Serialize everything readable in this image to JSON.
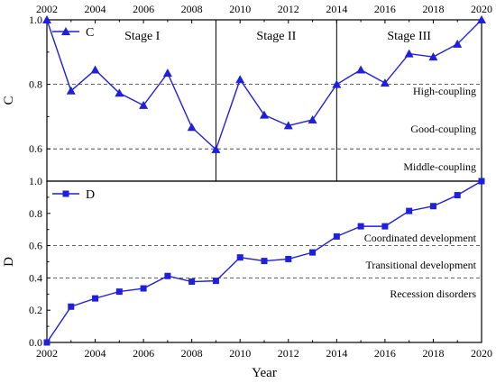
{
  "chart_data": [
    {
      "type": "line",
      "ylabel": "C",
      "xlim": [
        2002,
        2020
      ],
      "ylim": [
        0.5,
        1.0
      ],
      "yticks": [
        "0.6",
        "0.8",
        "1.0"
      ],
      "x_top_ticks": [
        "2002",
        "2004",
        "2006",
        "2008",
        "2010",
        "2012",
        "2014",
        "2016",
        "2018",
        "2020"
      ],
      "x": [
        2002,
        2003,
        2004,
        2005,
        2006,
        2007,
        2008,
        2009,
        2010,
        2011,
        2012,
        2013,
        2014,
        2015,
        2016,
        2017,
        2018,
        2019,
        2020
      ],
      "series": [
        {
          "name": "C",
          "marker": "triangle",
          "color": "#1f1fe0",
          "values": [
            1.0,
            0.78,
            0.845,
            0.773,
            0.735,
            0.835,
            0.667,
            0.598,
            0.815,
            0.705,
            0.672,
            0.69,
            0.8,
            0.845,
            0.804,
            0.895,
            0.885,
            0.925,
            1.0
          ]
        }
      ],
      "stages": [
        {
          "label": "Stage I",
          "from": 2002,
          "to": 2009
        },
        {
          "label": "Stage II",
          "from": 2009,
          "to": 2014
        },
        {
          "label": "Stage III",
          "from": 2014,
          "to": 2020
        }
      ],
      "reference_lines": [
        0.8,
        0.6
      ],
      "zones": [
        "High-coupling",
        "Good-coupling",
        "Middle-coupling"
      ]
    },
    {
      "type": "line",
      "ylabel": "D",
      "xlabel": "Year",
      "xlim": [
        2002,
        2020
      ],
      "ylim": [
        0.0,
        1.0
      ],
      "yticks": [
        "0.0",
        "0.2",
        "0.4",
        "0.6",
        "0.8",
        "1.0"
      ],
      "xticks": [
        "2002",
        "2004",
        "2006",
        "2008",
        "2010",
        "2012",
        "2014",
        "2016",
        "2018",
        "2020"
      ],
      "x": [
        2002,
        2003,
        2004,
        2005,
        2006,
        2007,
        2008,
        2009,
        2010,
        2011,
        2012,
        2013,
        2014,
        2015,
        2016,
        2017,
        2018,
        2019,
        2020
      ],
      "series": [
        {
          "name": "D",
          "marker": "square",
          "color": "#1f1fe0",
          "values": [
            0.0,
            0.222,
            0.273,
            0.315,
            0.335,
            0.412,
            0.377,
            0.382,
            0.527,
            0.505,
            0.517,
            0.558,
            0.657,
            0.72,
            0.72,
            0.815,
            0.845,
            0.913,
            1.0
          ]
        }
      ],
      "reference_lines": [
        0.6,
        0.4
      ],
      "zones": [
        "Coordinated development",
        "Transitional development",
        "Recession disorders"
      ]
    }
  ]
}
